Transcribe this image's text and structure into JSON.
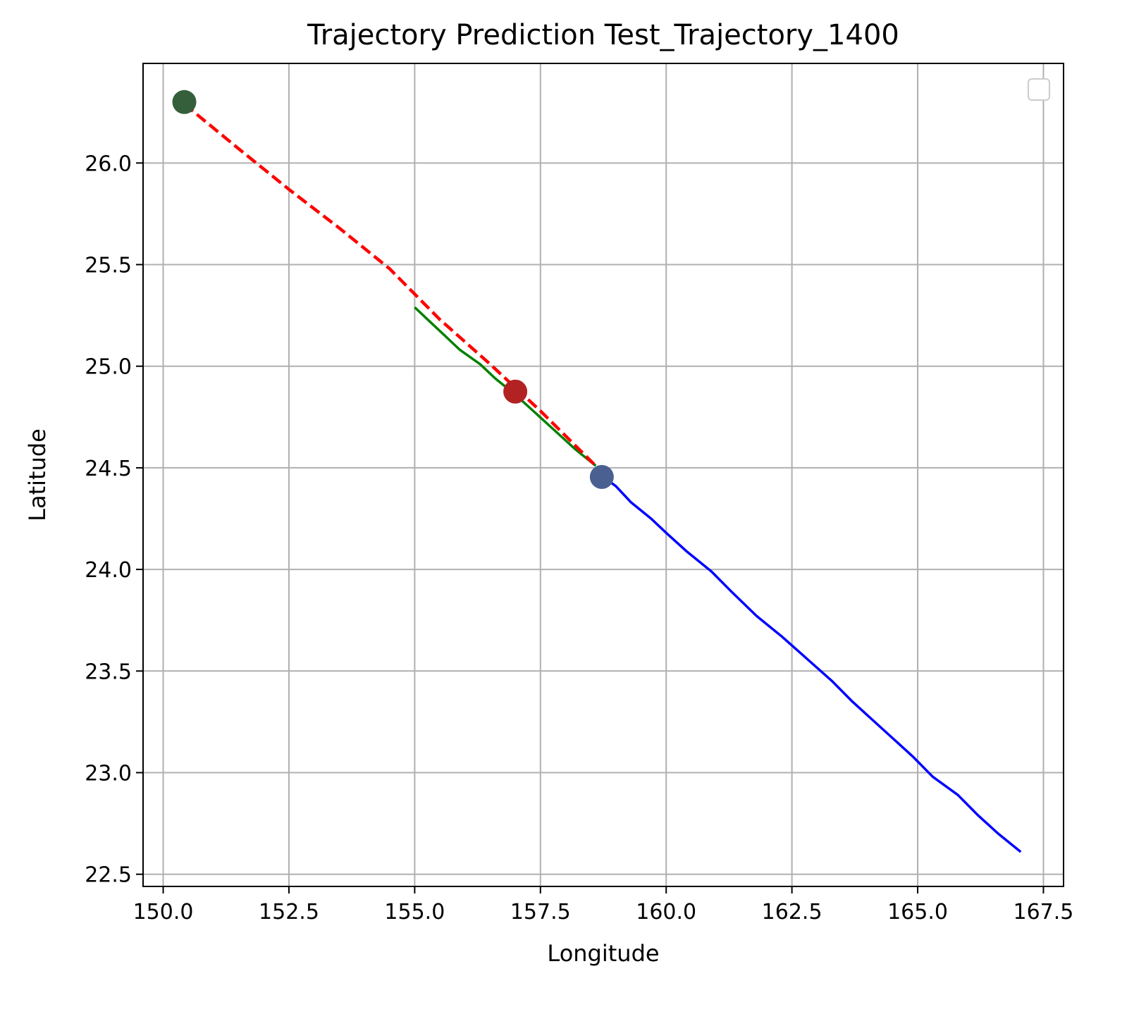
{
  "chart_data": {
    "type": "line",
    "title": "Trajectory Prediction Test_Trajectory_1400",
    "xlabel": "Longitude",
    "ylabel": "Latitude",
    "xlim": [
      149.6,
      167.9
    ],
    "ylim": [
      22.44,
      26.49
    ],
    "x_ticks": [
      150.0,
      152.5,
      155.0,
      157.5,
      160.0,
      162.5,
      165.0,
      167.5
    ],
    "x_tick_labels": [
      "150.0",
      "152.5",
      "155.0",
      "157.5",
      "160.0",
      "162.5",
      "165.0",
      "167.5"
    ],
    "y_ticks": [
      22.5,
      23.0,
      23.5,
      24.0,
      24.5,
      25.0,
      25.5,
      26.0
    ],
    "y_tick_labels": [
      "22.5",
      "23.0",
      "23.5",
      "24.0",
      "24.5",
      "25.0",
      "25.5",
      "26.0"
    ],
    "grid": true,
    "legend": {
      "placement": "top-right",
      "entries": []
    },
    "series": [
      {
        "style": "solid",
        "color": "#0000ff",
        "x": [
          158.72,
          159.0,
          159.3,
          159.7,
          160.0,
          160.4,
          160.9,
          161.3,
          161.8,
          162.3,
          162.8,
          163.3,
          163.7,
          164.1,
          164.5,
          164.9,
          165.3,
          165.8,
          166.2,
          166.6,
          167.05
        ],
        "y": [
          24.46,
          24.41,
          24.33,
          24.25,
          24.18,
          24.09,
          23.99,
          23.89,
          23.77,
          23.67,
          23.56,
          23.45,
          23.35,
          23.26,
          23.17,
          23.08,
          22.98,
          22.89,
          22.79,
          22.7,
          22.61
        ]
      },
      {
        "style": "solid",
        "color": "#008000",
        "x": [
          155.0,
          155.3,
          155.6,
          155.9,
          156.3,
          156.6,
          157.0,
          157.4,
          157.8,
          158.2,
          158.6
        ],
        "y": [
          25.29,
          25.22,
          25.15,
          25.08,
          25.01,
          24.94,
          24.86,
          24.77,
          24.68,
          24.59,
          24.51
        ]
      },
      {
        "style": "dashed",
        "color": "#ff0000",
        "x": [
          150.42,
          151.5,
          152.5,
          153.5,
          154.5,
          155.5,
          156.5,
          157.5,
          158.72
        ],
        "y": [
          26.29,
          26.07,
          25.87,
          25.68,
          25.48,
          25.23,
          25.01,
          24.78,
          24.48
        ]
      }
    ],
    "markers": [
      {
        "x": 150.42,
        "y": 26.3,
        "color": "#355e3b"
      },
      {
        "x": 157.0,
        "y": 24.875,
        "color": "#b22222"
      },
      {
        "x": 158.72,
        "y": 24.455,
        "color": "#4a6090"
      }
    ]
  }
}
